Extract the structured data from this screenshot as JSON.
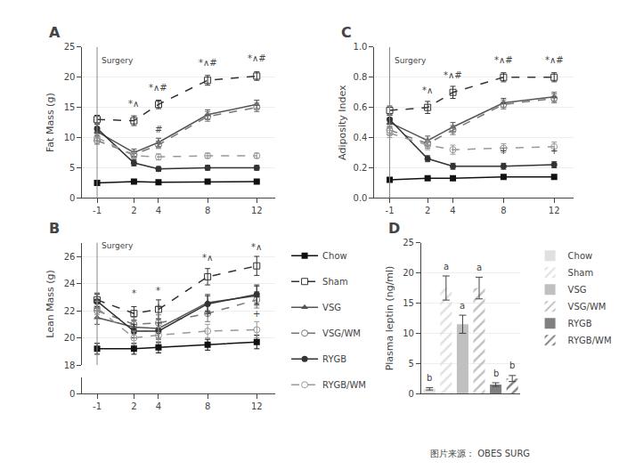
{
  "chart_data": [
    {
      "type": "line",
      "title": "A",
      "ylabel": "Fat Mass (g)",
      "x": [
        -1,
        2,
        4,
        8,
        12
      ],
      "xlim": [
        -2.2,
        13.5
      ],
      "xticks": [
        -1,
        2,
        4,
        8,
        12
      ],
      "ylim": [
        0,
        25
      ],
      "yticks": [
        0,
        5,
        10,
        15,
        20,
        25
      ],
      "grid": true,
      "series": [
        {
          "name": "Chow",
          "color": "#111111",
          "marker": "square",
          "line_style": "solid",
          "values": [
            2.5,
            2.7,
            2.6,
            2.7,
            2.7
          ],
          "errors": [
            0.15,
            0.15,
            0.15,
            0.15,
            0.15
          ]
        },
        {
          "name": "Sham",
          "color": "#333333",
          "marker": "square-open",
          "line_style": "dash",
          "values": [
            13.0,
            12.8,
            15.5,
            19.5,
            20.2
          ],
          "errors": [
            0.7,
            0.8,
            0.7,
            0.8,
            0.7
          ]
        },
        {
          "name": "VSG",
          "color": "#555555",
          "marker": "triangle-up",
          "line_style": "solid",
          "values": [
            11.0,
            7.5,
            9.2,
            13.8,
            15.5
          ],
          "errors": [
            0.7,
            0.6,
            0.7,
            0.8,
            0.7
          ]
        },
        {
          "name": "VSG/WM",
          "color": "#777777",
          "marker": "circle-open",
          "line_style": "dash",
          "values": [
            9.5,
            7.2,
            8.8,
            13.5,
            15.0
          ],
          "errors": [
            0.6,
            0.6,
            0.6,
            0.8,
            0.7
          ]
        },
        {
          "name": "RYGB",
          "color": "#333333",
          "marker": "circle",
          "line_style": "solid",
          "values": [
            11.5,
            5.8,
            4.8,
            5.0,
            5.0
          ],
          "errors": [
            0.7,
            0.5,
            0.4,
            0.4,
            0.4
          ]
        },
        {
          "name": "RYGB/WM",
          "color": "#999999",
          "marker": "circle-open",
          "line_style": "dash",
          "values": [
            10.0,
            7.0,
            6.8,
            7.0,
            7.0
          ],
          "errors": [
            0.6,
            0.5,
            0.5,
            0.4,
            0.4
          ]
        }
      ],
      "annotations": [
        {
          "x": 2,
          "y": 14.5,
          "text": "*∧"
        },
        {
          "x": 4,
          "y": 17.2,
          "text": "*∧#"
        },
        {
          "x": 8,
          "y": 21.3,
          "text": "*∧#"
        },
        {
          "x": 12,
          "y": 22.0,
          "text": "*∧#"
        },
        {
          "x": 4,
          "y": 10.3,
          "text": "#"
        }
      ],
      "vlines": [
        {
          "x": -1,
          "y": 21.75,
          "text": "Surgery"
        }
      ]
    },
    {
      "type": "line",
      "title": "B",
      "ylabel": "Lean Mass (g)",
      "x": [
        -1,
        2,
        4,
        8,
        12
      ],
      "xlim": [
        -2.2,
        13.5
      ],
      "xticks": [
        -1,
        2,
        4,
        8,
        12
      ],
      "ylim": [
        18,
        27
      ],
      "yticks": [
        18,
        20,
        22,
        24,
        26
      ],
      "y2lim": [
        0,
        1
      ],
      "y2ticks": [
        0
      ],
      "grid": true,
      "legend": "right",
      "series": [
        {
          "name": "Chow",
          "color": "#111111",
          "marker": "square",
          "line_style": "solid",
          "values": [
            19.2,
            19.2,
            19.3,
            19.5,
            19.7
          ],
          "errors": [
            0.4,
            0.4,
            0.4,
            0.4,
            0.5
          ]
        },
        {
          "name": "Sham",
          "color": "#333333",
          "marker": "square-open",
          "line_style": "dash",
          "values": [
            22.8,
            21.8,
            22.1,
            24.5,
            25.3
          ],
          "errors": [
            0.5,
            0.5,
            0.7,
            0.6,
            0.7
          ]
        },
        {
          "name": "VSG",
          "color": "#555555",
          "marker": "triangle-up",
          "line_style": "solid",
          "values": [
            21.5,
            20.8,
            20.7,
            22.6,
            23.1
          ],
          "errors": [
            0.5,
            0.5,
            0.7,
            0.6,
            0.7
          ]
        },
        {
          "name": "VSG/WM",
          "color": "#777777",
          "marker": "circle-open",
          "line_style": "dash",
          "values": [
            22.0,
            21.0,
            21.1,
            21.8,
            22.8
          ],
          "errors": [
            0.5,
            0.5,
            0.6,
            0.6,
            0.6
          ]
        },
        {
          "name": "RYGB",
          "color": "#333333",
          "marker": "circle",
          "line_style": "solid",
          "values": [
            22.7,
            20.5,
            20.5,
            22.5,
            23.2
          ],
          "errors": [
            0.5,
            0.5,
            0.6,
            0.6,
            0.7
          ]
        },
        {
          "name": "RYGB/WM",
          "color": "#999999",
          "marker": "circle-open",
          "line_style": "dash",
          "values": [
            22.2,
            20.0,
            20.2,
            20.5,
            20.6
          ],
          "errors": [
            0.5,
            0.5,
            0.6,
            0.5,
            0.6
          ]
        }
      ],
      "annotations": [
        {
          "x": 2,
          "y": 22.8,
          "text": "*"
        },
        {
          "x": 4,
          "y": 23.0,
          "text": "*"
        },
        {
          "x": 8,
          "y": 25.4,
          "text": "*∧"
        },
        {
          "x": 12,
          "y": 26.2,
          "text": "*∧"
        },
        {
          "x": 4,
          "y": 21.8,
          "text": "+"
        },
        {
          "x": 8,
          "y": 21.3,
          "text": "+"
        },
        {
          "x": 12,
          "y": 21.3,
          "text": "+"
        }
      ],
      "vlines": [
        {
          "x": -1,
          "y": 26.3,
          "text": "Surgery"
        }
      ]
    },
    {
      "type": "line",
      "title": "C",
      "ylabel": "Adiposity Index",
      "x": [
        -1,
        2,
        4,
        8,
        12
      ],
      "xlim": [
        -2.2,
        13.5
      ],
      "xticks": [
        -1,
        2,
        4,
        8,
        12
      ],
      "ylim": [
        0.0,
        1.0
      ],
      "yticks": [
        {
          "value": 0.0,
          "label": "0.0"
        },
        0.2,
        0.4,
        0.6,
        0.8,
        {
          "value": 1.0,
          "label": "1.0"
        }
      ],
      "grid": true,
      "series": [
        {
          "name": "Chow",
          "color": "#111111",
          "marker": "square",
          "line_style": "solid",
          "values": [
            0.12,
            0.13,
            0.13,
            0.14,
            0.14
          ],
          "errors": [
            0.01,
            0.01,
            0.01,
            0.01,
            0.01
          ]
        },
        {
          "name": "Sham",
          "color": "#333333",
          "marker": "square-open",
          "line_style": "dash",
          "values": [
            0.58,
            0.6,
            0.7,
            0.8,
            0.8
          ],
          "errors": [
            0.03,
            0.04,
            0.04,
            0.03,
            0.03
          ]
        },
        {
          "name": "VSG",
          "color": "#555555",
          "marker": "triangle-up",
          "line_style": "solid",
          "values": [
            0.5,
            0.38,
            0.47,
            0.63,
            0.67
          ],
          "errors": [
            0.03,
            0.03,
            0.03,
            0.03,
            0.03
          ]
        },
        {
          "name": "VSG/WM",
          "color": "#777777",
          "marker": "circle-open",
          "line_style": "dash",
          "values": [
            0.45,
            0.36,
            0.45,
            0.62,
            0.66
          ],
          "errors": [
            0.03,
            0.03,
            0.03,
            0.03,
            0.03
          ]
        },
        {
          "name": "RYGB",
          "color": "#333333",
          "marker": "circle",
          "line_style": "solid",
          "values": [
            0.52,
            0.26,
            0.21,
            0.21,
            0.22
          ],
          "errors": [
            0.03,
            0.02,
            0.02,
            0.02,
            0.02
          ]
        },
        {
          "name": "RYGB/WM",
          "color": "#999999",
          "marker": "circle-open",
          "line_style": "dash",
          "values": [
            0.43,
            0.35,
            0.32,
            0.33,
            0.34
          ],
          "errors": [
            0.03,
            0.03,
            0.03,
            0.03,
            0.03
          ]
        }
      ],
      "annotations": [
        {
          "x": 2,
          "y": 0.67,
          "text": "*∧"
        },
        {
          "x": 4,
          "y": 0.77,
          "text": "*∧#"
        },
        {
          "x": 8,
          "y": 0.87,
          "text": "*∧#"
        },
        {
          "x": 12,
          "y": 0.87,
          "text": "*∧#"
        },
        {
          "x": 8,
          "y": 0.27,
          "text": "+"
        },
        {
          "x": 12,
          "y": 0.27,
          "text": "+"
        }
      ],
      "vlines": [
        {
          "x": -1,
          "y": 0.87,
          "text": "Surgery"
        }
      ]
    },
    {
      "type": "bar",
      "title": "D",
      "ylabel": "Plasma leptin (ng/ml)",
      "categories": [
        "Chow",
        "Sham",
        "VSG",
        "VSG/WM",
        "RYGB",
        "RYGB/WM"
      ],
      "ylim": [
        0,
        25
      ],
      "yticks": [
        0,
        5,
        10,
        15,
        20,
        25
      ],
      "grid": true,
      "tick_labels": "y",
      "legend": "right",
      "series": [
        {
          "name": "Chow",
          "color": "#e0e0e0",
          "marker": "solid",
          "values": [
            0.8,
            null,
            null,
            null,
            null,
            null
          ],
          "errors": [
            0.2,
            null,
            null,
            null,
            null,
            null
          ]
        },
        {
          "name": "Sham",
          "color": "#e0e0e0",
          "marker": "hatch",
          "values": [
            null,
            17.5,
            null,
            null,
            null,
            null
          ],
          "errors": [
            null,
            2.0,
            null,
            null,
            null,
            null
          ]
        },
        {
          "name": "VSG",
          "color": "#c0c0c0",
          "marker": "solid",
          "values": [
            null,
            null,
            11.5,
            null,
            null,
            null
          ],
          "errors": [
            null,
            null,
            1.5,
            null,
            null,
            null
          ]
        },
        {
          "name": "VSG/WM",
          "color": "#c0c0c0",
          "marker": "hatch",
          "values": [
            null,
            null,
            null,
            17.5,
            null,
            null
          ],
          "errors": [
            null,
            null,
            null,
            1.8,
            null,
            null
          ]
        },
        {
          "name": "RYGB",
          "color": "#808080",
          "marker": "solid",
          "values": [
            null,
            null,
            null,
            null,
            1.5,
            null
          ],
          "errors": [
            null,
            null,
            null,
            null,
            0.3,
            null
          ]
        },
        {
          "name": "RYGB/WM",
          "color": "#808080",
          "marker": "hatch",
          "values": [
            null,
            null,
            null,
            null,
            null,
            2.5
          ],
          "errors": [
            null,
            null,
            null,
            null,
            null,
            0.5
          ]
        }
      ],
      "annotations": [
        {
          "x": "Chow",
          "y": 1.5,
          "text": "b"
        },
        {
          "x": "Sham",
          "y": 20.0,
          "text": "a"
        },
        {
          "x": "VSG",
          "y": 13.5,
          "text": "a"
        },
        {
          "x": "VSG/WM",
          "y": 19.8,
          "text": "a"
        },
        {
          "x": "RYGB",
          "y": 2.3,
          "text": "b"
        },
        {
          "x": "RYGB/WM",
          "y": 3.5,
          "text": "b"
        }
      ]
    }
  ],
  "footnote": "图片来源： OBES SURG"
}
